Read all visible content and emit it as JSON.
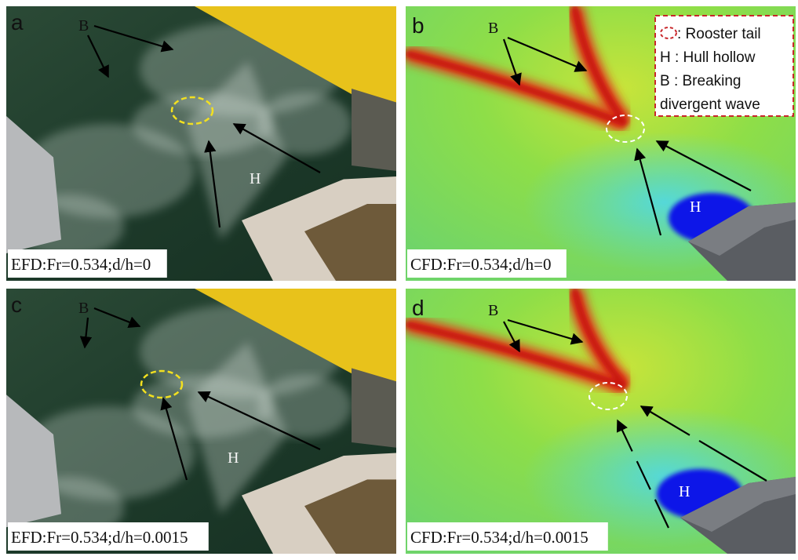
{
  "panels": [
    {
      "letter": "a",
      "caption": "EFD:Fr=0.534;d/h=0",
      "breaking": "B",
      "hollow": "H",
      "kind": "photo"
    },
    {
      "letter": "b",
      "caption": "CFD:Fr=0.534;d/h=0",
      "breaking": "B",
      "hollow": "H",
      "kind": "cfd"
    },
    {
      "letter": "c",
      "caption": "EFD:Fr=0.534;d/h=0.0015",
      "breaking": "B",
      "hollow": "H",
      "kind": "photo"
    },
    {
      "letter": "d",
      "caption": "CFD:Fr=0.534;d/h=0.0015",
      "breaking": "B",
      "hollow": "H",
      "kind": "cfd"
    }
  ],
  "legend": {
    "lines": [
      ": Rooster tail",
      "H : Hull hollow",
      "B : Breaking",
      "divergent wave"
    ]
  }
}
